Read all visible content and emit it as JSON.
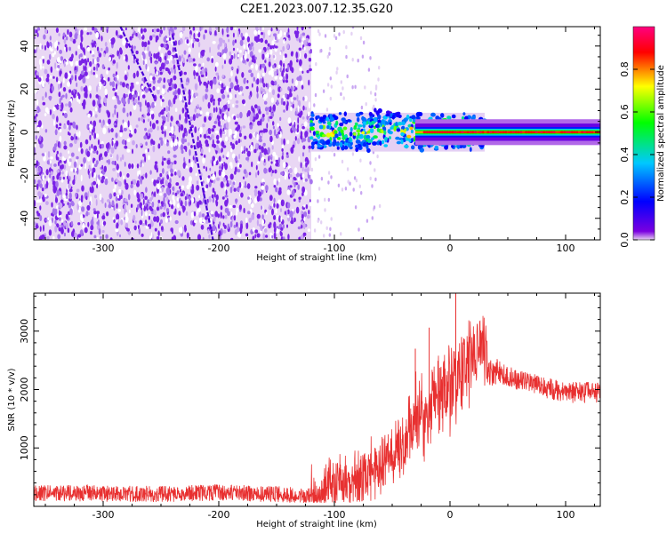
{
  "title": "C2E1.2023.007.12.35.G20",
  "chart_data": [
    {
      "type": "heatmap",
      "xlabel": "Height of straight line (km)",
      "ylabel": "Frequency (Hz)",
      "xlim": [
        -360,
        130
      ],
      "ylim": [
        -50,
        49
      ],
      "x_ticks": [
        -300,
        -200,
        -100,
        0,
        100
      ],
      "y_ticks": [
        -40,
        -20,
        0,
        20,
        40
      ],
      "colorbar": {
        "label": "Normalized spectral amplitude",
        "range": [
          0,
          1
        ],
        "ticks": [
          0.0,
          0.2,
          0.4,
          0.6,
          0.8
        ],
        "colormap": [
          "#e8d0f0",
          "#7a00e0",
          "#0000ff",
          "#00c8ff",
          "#00ff00",
          "#ffff00",
          "#ff0000",
          "#ff0080"
        ]
      },
      "regions": [
        {
          "x_range": [
            -360,
            -120
          ],
          "freq_range": [
            -50,
            49
          ],
          "amplitude": "low (0.0-0.1), noise speckle"
        },
        {
          "x_range": [
            -120,
            30
          ],
          "freq_center": 0,
          "freq_halfwidth": 6,
          "amplitude": "0.3-0.9, fragmented"
        },
        {
          "x_range": [
            30,
            130
          ],
          "freq_center": 0,
          "freq_halfwidth": 3,
          "amplitude": "up to 0.9, steady line at 0 Hz"
        }
      ],
      "streaks": [
        {
          "x_start": -240,
          "freq_start": 45,
          "x_end": -205,
          "freq_end": -50
        },
        {
          "x_start": -285,
          "freq_start": 49,
          "x_end": -255,
          "freq_end": 15
        }
      ]
    },
    {
      "type": "line",
      "xlabel": "Height of straight line (km)",
      "ylabel": "SNR (10 * v/v)",
      "xlim": [
        -360,
        130
      ],
      "ylim": [
        0,
        3650
      ],
      "x_ticks": [
        -300,
        -200,
        -100,
        0,
        100
      ],
      "y_ticks": [
        1000,
        2000,
        3000
      ],
      "color": "#e83030",
      "x": [
        -360,
        -300,
        -250,
        -200,
        -150,
        -120,
        -110,
        -100,
        -80,
        -60,
        -40,
        -30,
        -20,
        -10,
        0,
        10,
        20,
        30,
        33,
        40,
        60,
        80,
        100,
        130
      ],
      "y": [
        230,
        220,
        210,
        240,
        210,
        180,
        200,
        400,
        500,
        700,
        1000,
        1500,
        1600,
        1850,
        2000,
        2300,
        2600,
        2700,
        2300,
        2300,
        2150,
        2050,
        1950,
        1950
      ],
      "spikes": [
        {
          "x": 5,
          "y": 3650
        },
        {
          "x": -18,
          "y": 3060
        },
        {
          "x": -30,
          "y": 2700
        },
        {
          "x": 10,
          "y": 2900
        }
      ]
    }
  ]
}
